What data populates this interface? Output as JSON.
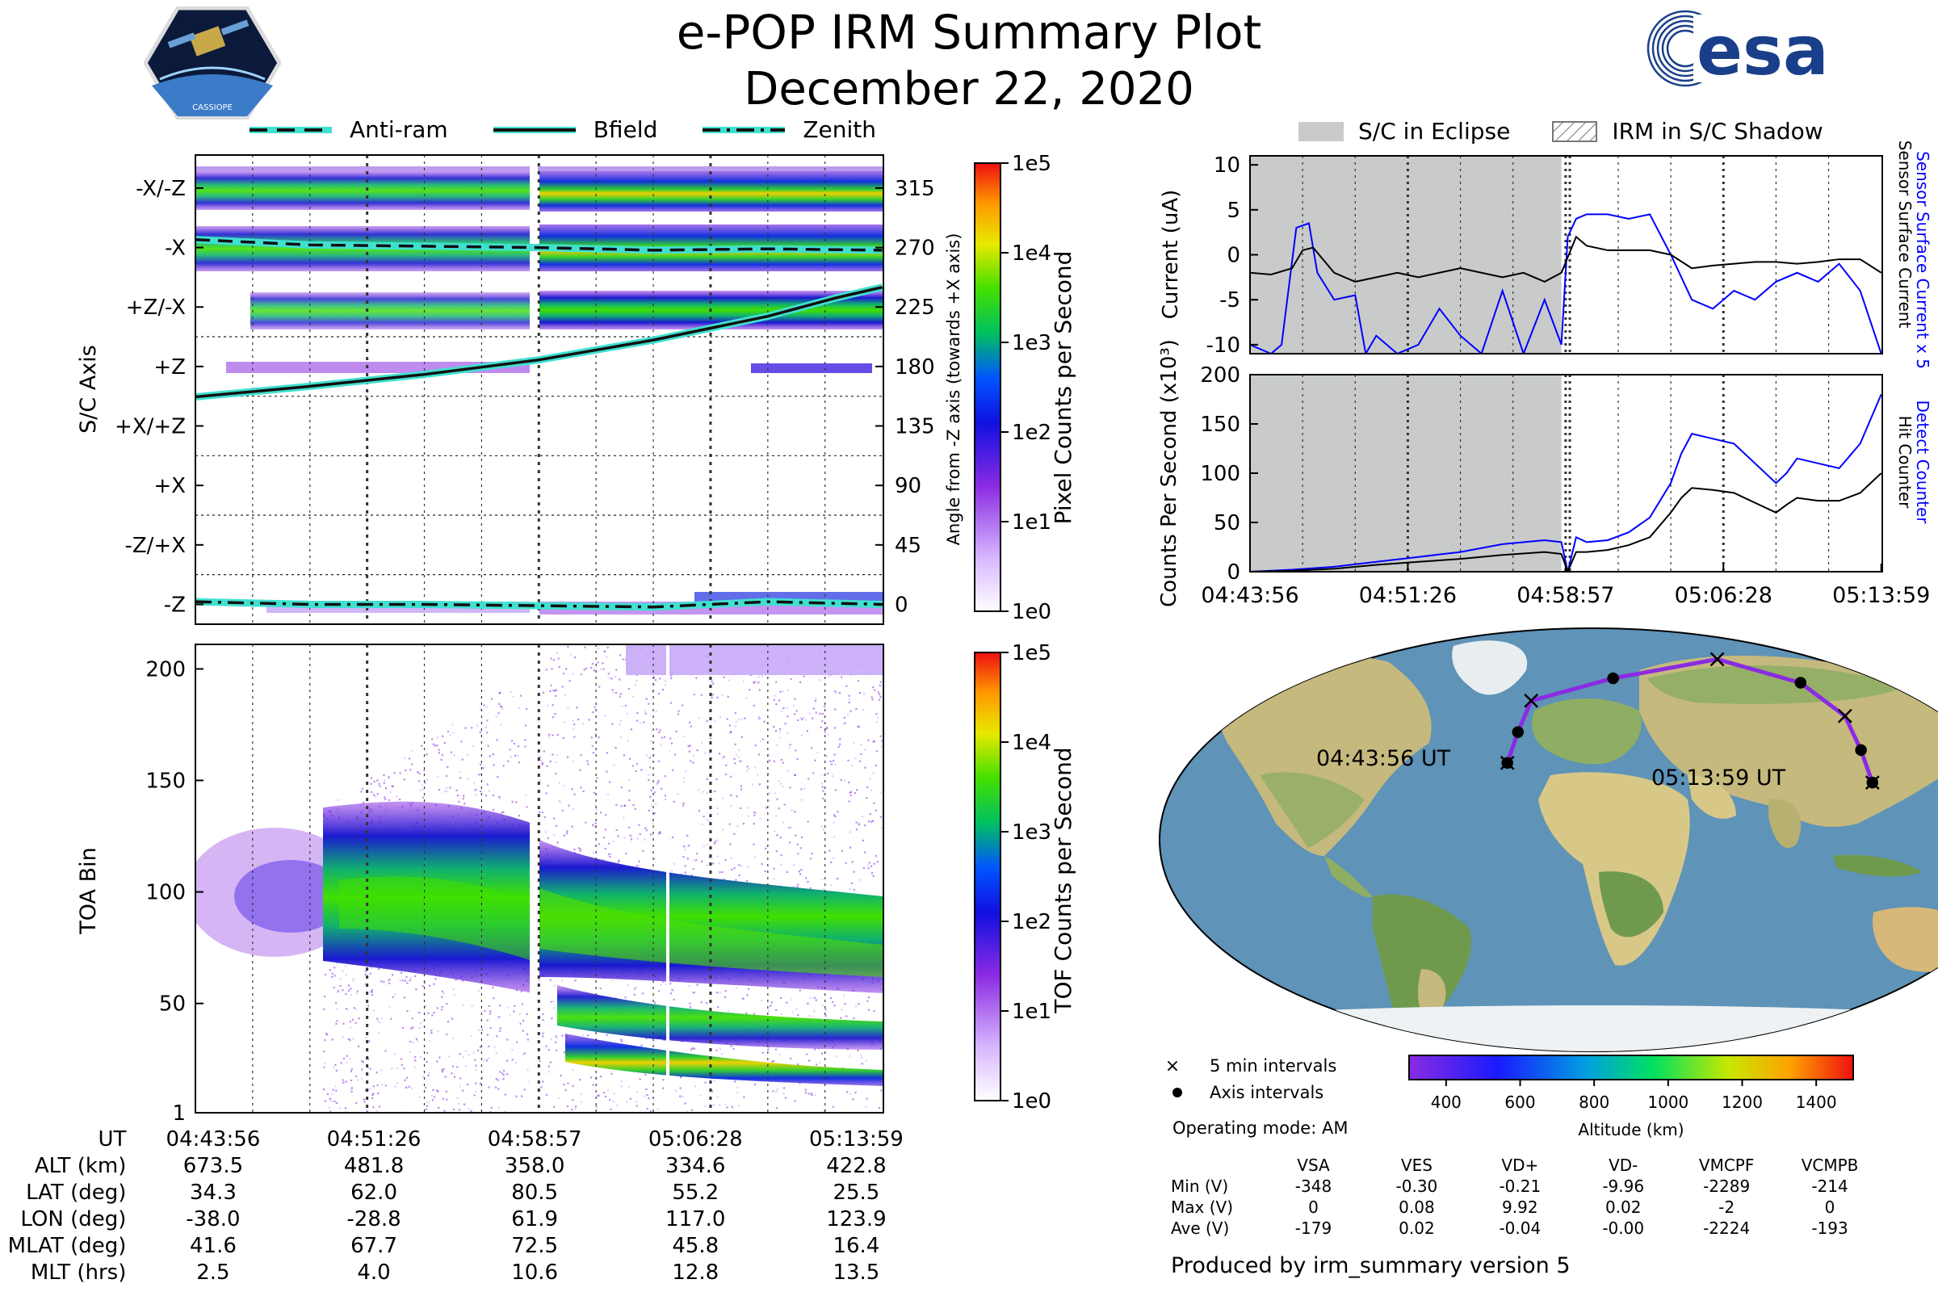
{
  "header": {
    "title": "e-POP IRM Summary Plot",
    "date": "December 22, 2020",
    "left_logo_text": "CASSIOPE",
    "right_logo_text": "esa"
  },
  "colors": {
    "anti_ram": "#1a1a1a",
    "bfield": "#1a1a1a",
    "line_glow": "#40e0d0",
    "current_black": "#000000",
    "current_blue": "#0000ff",
    "eclipse_gray": "#c8cbca",
    "orbit": "#8a2be2",
    "ocean": "#5f93b8",
    "land": "#c9c08a"
  },
  "legend_top": {
    "items": [
      {
        "label": "Anti-ram",
        "style": "dashed"
      },
      {
        "label": "Bfield",
        "style": "solid"
      },
      {
        "label": "Zenith",
        "style": "dashdot"
      }
    ]
  },
  "legend_eclipse": {
    "items": [
      {
        "label": "S/C in Eclipse",
        "style": "gray"
      },
      {
        "label": "IRM in S/C Shadow",
        "style": "hatch"
      }
    ]
  },
  "chart_data": [
    {
      "id": "sc_axis_spectrogram",
      "type": "heatmap",
      "ylabel": "S/C Axis",
      "y_categories": [
        "-X/-Z",
        "-X",
        "+Z/-X",
        "+Z",
        "+X/+Z",
        "+X",
        "-Z/+X",
        "-Z"
      ],
      "right_axis_label": "Angle from -Z axis (towards +X axis)",
      "right_axis_ticks": [
        315,
        270,
        225,
        180,
        135,
        90,
        45,
        0
      ],
      "right_ylim": [
        -15,
        340
      ],
      "x_tick_labels": [
        "04:43:56",
        "04:51:26",
        "04:58:57",
        "05:06:28",
        "05:13:59"
      ],
      "xlim_minutes": [
        0,
        30.05
      ],
      "colorbar": {
        "label": "Pixel Counts per Second",
        "ticks": [
          "1e0",
          "1e1",
          "1e2",
          "1e3",
          "1e4",
          "1e5"
        ]
      },
      "series": [
        {
          "name": "Anti-ram",
          "x": [
            0,
            5,
            10,
            15,
            20,
            25,
            30
          ],
          "angle": [
            276,
            272,
            271,
            270,
            268,
            269,
            268
          ]
        },
        {
          "name": "Bfield",
          "x": [
            0,
            5,
            10,
            15,
            20,
            25,
            28,
            30
          ],
          "angle": [
            157,
            165,
            174,
            185,
            200,
            218,
            232,
            240
          ]
        },
        {
          "name": "Zenith",
          "x": [
            0,
            5,
            10,
            15,
            20,
            25,
            30
          ],
          "angle": [
            2,
            0,
            0,
            -1,
            -2,
            2,
            0
          ]
        }
      ]
    },
    {
      "id": "toa_spectrogram",
      "type": "heatmap",
      "ylabel": "TOA Bin",
      "y_ticks": [
        1,
        50,
        100,
        150,
        200
      ],
      "ylim": [
        1,
        211
      ],
      "x_tick_labels": [
        "04:43:56",
        "04:51:26",
        "04:58:57",
        "05:06:28",
        "05:13:59"
      ],
      "colorbar": {
        "label": "TOF Counts per Second",
        "ticks": [
          "1e0",
          "1e1",
          "1e2",
          "1e3",
          "1e4",
          "1e5"
        ]
      }
    },
    {
      "id": "current",
      "type": "line",
      "ylabel": "Current (uA)",
      "ylim": [
        -11,
        11
      ],
      "y_ticks": [
        10,
        5,
        0,
        -5,
        -10
      ],
      "right_labels": [
        "Sensor Surface Current x 5",
        "Sensor Surface Current"
      ],
      "series": [
        {
          "name": "Sensor Surface Current x 5",
          "x": [
            0,
            1,
            1.5,
            2.2,
            2.8,
            3.2,
            4,
            5,
            5.5,
            6,
            7,
            8,
            9,
            10,
            11,
            12,
            13,
            14,
            14.8,
            15.1,
            15.5,
            16,
            16.5,
            17,
            18,
            19,
            20,
            21,
            22,
            23,
            24,
            25,
            26,
            27,
            28,
            29,
            30
          ],
          "y": [
            -10,
            -11,
            -10,
            3,
            3.5,
            -2,
            -5,
            -4.5,
            -11,
            -9,
            -11,
            -10,
            -6,
            -9,
            -11,
            -4,
            -11,
            -5,
            -10,
            2,
            4,
            4.5,
            4.5,
            4.5,
            4,
            4.5,
            0,
            -5,
            -6,
            -4,
            -5,
            -3,
            -2,
            -3,
            -1,
            -4,
            -11
          ]
        },
        {
          "name": "Sensor Surface Current",
          "x": [
            0,
            1,
            2,
            2.5,
            3,
            4,
            5,
            6,
            7,
            8,
            9,
            10,
            11,
            12,
            13,
            14,
            14.8,
            15.5,
            16,
            17,
            18,
            19,
            20,
            21,
            22,
            23,
            24,
            25,
            26,
            27,
            28,
            29,
            30
          ],
          "y": [
            -2,
            -2.2,
            -1.5,
            0.5,
            0.8,
            -2,
            -3,
            -2.5,
            -2,
            -2.5,
            -2,
            -1.5,
            -2,
            -2.5,
            -2,
            -3,
            -2,
            2,
            1,
            0.5,
            0.5,
            0.5,
            0,
            -1.5,
            -1.2,
            -1,
            -0.8,
            -0.8,
            -1,
            -0.8,
            -0.5,
            -0.5,
            -2
          ]
        }
      ]
    },
    {
      "id": "counts",
      "type": "line",
      "ylabel": "Counts Per Second (x10³)",
      "ylim": [
        0,
        200
      ],
      "y_ticks": [
        0,
        50,
        100,
        150,
        200
      ],
      "right_labels": [
        "Detect Counter",
        "Hit Counter"
      ],
      "x_tick_labels": [
        "04:43:56",
        "04:51:26",
        "04:58:57",
        "05:06:28",
        "05:13:59"
      ],
      "series": [
        {
          "name": "Detect Counter",
          "x": [
            0,
            2,
            4,
            6,
            8,
            10,
            12,
            14,
            14.8,
            15.1,
            15.5,
            16,
            17,
            18,
            19,
            20,
            20.5,
            21,
            22,
            23,
            24,
            25,
            25.5,
            26,
            27,
            28,
            29,
            30
          ],
          "y": [
            0,
            2,
            5,
            10,
            15,
            20,
            28,
            32,
            30,
            0,
            35,
            30,
            32,
            40,
            55,
            90,
            120,
            140,
            135,
            130,
            110,
            90,
            100,
            115,
            110,
            105,
            130,
            180
          ]
        },
        {
          "name": "Hit Counter",
          "x": [
            0,
            2,
            4,
            6,
            8,
            10,
            12,
            14,
            14.8,
            15.1,
            15.5,
            16,
            17,
            18,
            19,
            20,
            20.5,
            21,
            22,
            23,
            24,
            25,
            25.5,
            26,
            27,
            28,
            29,
            30
          ],
          "y": [
            0,
            1,
            3,
            7,
            10,
            13,
            17,
            20,
            18,
            0,
            20,
            20,
            22,
            27,
            35,
            60,
            75,
            85,
            83,
            80,
            70,
            60,
            68,
            75,
            72,
            72,
            80,
            100
          ]
        }
      ],
      "eclipse_x_range": [
        0,
        14.8
      ]
    },
    {
      "id": "orbit_map",
      "type": "scatter",
      "start_label": "04:43:56 UT",
      "end_label": "05:13:59 UT",
      "lat": [
        34.3,
        48,
        62,
        72,
        80.5,
        70,
        55.2,
        40,
        25.5
      ],
      "lon": [
        -38.0,
        -34,
        -28.8,
        10,
        61.9,
        100,
        117.0,
        121,
        123.9
      ],
      "legend": [
        "5 min intervals",
        "Axis intervals"
      ],
      "colorbar": {
        "label": "Altitude (km)",
        "ticks": [
          400,
          600,
          800,
          1000,
          1200,
          1400
        ],
        "range": [
          300,
          1500
        ]
      }
    }
  ],
  "meta": {
    "operating_mode": "Operating mode: AM",
    "produced_by": "Produced by irm_summary version 5"
  },
  "stats": {
    "columns": [
      "VSA",
      "VES",
      "VD+",
      "VD-",
      "VMCPF",
      "VCMPB"
    ],
    "rows": [
      {
        "label": "Min (V)",
        "values": [
          "-348",
          "-0.30",
          "-0.21",
          "-9.96",
          "-2289",
          "-214"
        ]
      },
      {
        "label": "Max (V)",
        "values": [
          "0",
          "0.08",
          "9.92",
          "0.02",
          "-2",
          "0"
        ]
      },
      {
        "label": "Ave (V)",
        "values": [
          "-179",
          "0.02",
          "-0.04",
          "-0.00",
          "-2224",
          "-193"
        ]
      }
    ]
  },
  "ut_table": {
    "times": [
      "04:43:56",
      "04:51:26",
      "04:58:57",
      "05:06:28",
      "05:13:59"
    ],
    "rows": [
      {
        "label": "UT",
        "values": [
          "04:43:56",
          "04:51:26",
          "04:58:57",
          "05:06:28",
          "05:13:59"
        ]
      },
      {
        "label": "ALT (km)",
        "values": [
          "673.5",
          "481.8",
          "358.0",
          "334.6",
          "422.8"
        ]
      },
      {
        "label": "LAT (deg)",
        "values": [
          "34.3",
          "62.0",
          "80.5",
          "55.2",
          "25.5"
        ]
      },
      {
        "label": "LON (deg)",
        "values": [
          "-38.0",
          "-28.8",
          "61.9",
          "117.0",
          "123.9"
        ]
      },
      {
        "label": "MLAT (deg)",
        "values": [
          "41.6",
          "67.7",
          "72.5",
          "45.8",
          "16.4"
        ]
      },
      {
        "label": "MLT (hrs)",
        "values": [
          "2.5",
          "4.0",
          "10.6",
          "12.8",
          "13.5"
        ]
      }
    ]
  }
}
